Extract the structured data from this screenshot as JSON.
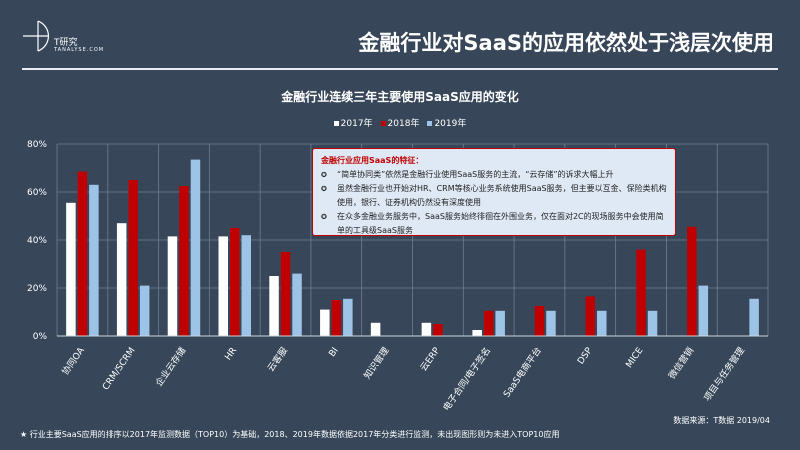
{
  "header": {
    "logo_cn": "T研究",
    "logo_en": "TANALYSE.COM",
    "title": "金融行业对SaaS的应用依然处于浅层次使用"
  },
  "note": {
    "heading": "金融行业应用SaaS的特征：",
    "bullets": [
      "“简单协同类”依然是金融行业使用SaaS服务的主流，“云存储”的诉求大幅上升",
      "虽然金融行业也开始对HR、CRM等核心业务系统使用SaaS服务，但主要以互金、保险类机构使用，银行、证券机构仍然没有深度使用",
      "在众多金融业务服务中，SaaS服务始终徘徊在外围业务，仅在面对2C的现场服务中会使用简单的工具级SaaS服务"
    ]
  },
  "source": "数据来源：T数据 2019/04",
  "footnote": "★  行业主要SaaS应用的排序以2017年监测数据（TOP10）为基础，2018、2019年数据依据2017年分类进行监测，未出现图形则为未进入TOP10应用",
  "chart_data": {
    "type": "bar",
    "title": "金融行业连续三年主要使用SaaS应用的变化",
    "categories": [
      "协同OA",
      "CRM/SCRM",
      "企业云存储",
      "HR",
      "云客服",
      "BI",
      "知识管理",
      "云ERP",
      "电子合同/电子签名",
      "SaaS电商平台",
      "DSP",
      "MICE",
      "微信营销",
      "项目与任务管理"
    ],
    "series": [
      {
        "name": "2017年",
        "color": "#ffffff",
        "values": [
          55.5,
          47,
          41.5,
          41.5,
          25,
          11,
          5.5,
          5.5,
          2.5,
          null,
          null,
          null,
          null,
          null
        ]
      },
      {
        "name": "2018年",
        "color": "#c00000",
        "values": [
          68.5,
          65,
          62.5,
          45,
          35,
          15,
          null,
          5,
          10.5,
          12.5,
          16.5,
          36,
          45.5,
          null
        ]
      },
      {
        "name": "2019年",
        "color": "#9dc3e6",
        "values": [
          63,
          21,
          73.5,
          42,
          26,
          15.5,
          null,
          null,
          10.5,
          10.5,
          10.5,
          10.5,
          21,
          15.5
        ]
      }
    ],
    "yticks": [
      "0%",
      "20%",
      "40%",
      "60%",
      "80%"
    ],
    "ylim": [
      0,
      80
    ],
    "grid": true,
    "legend": "top"
  }
}
